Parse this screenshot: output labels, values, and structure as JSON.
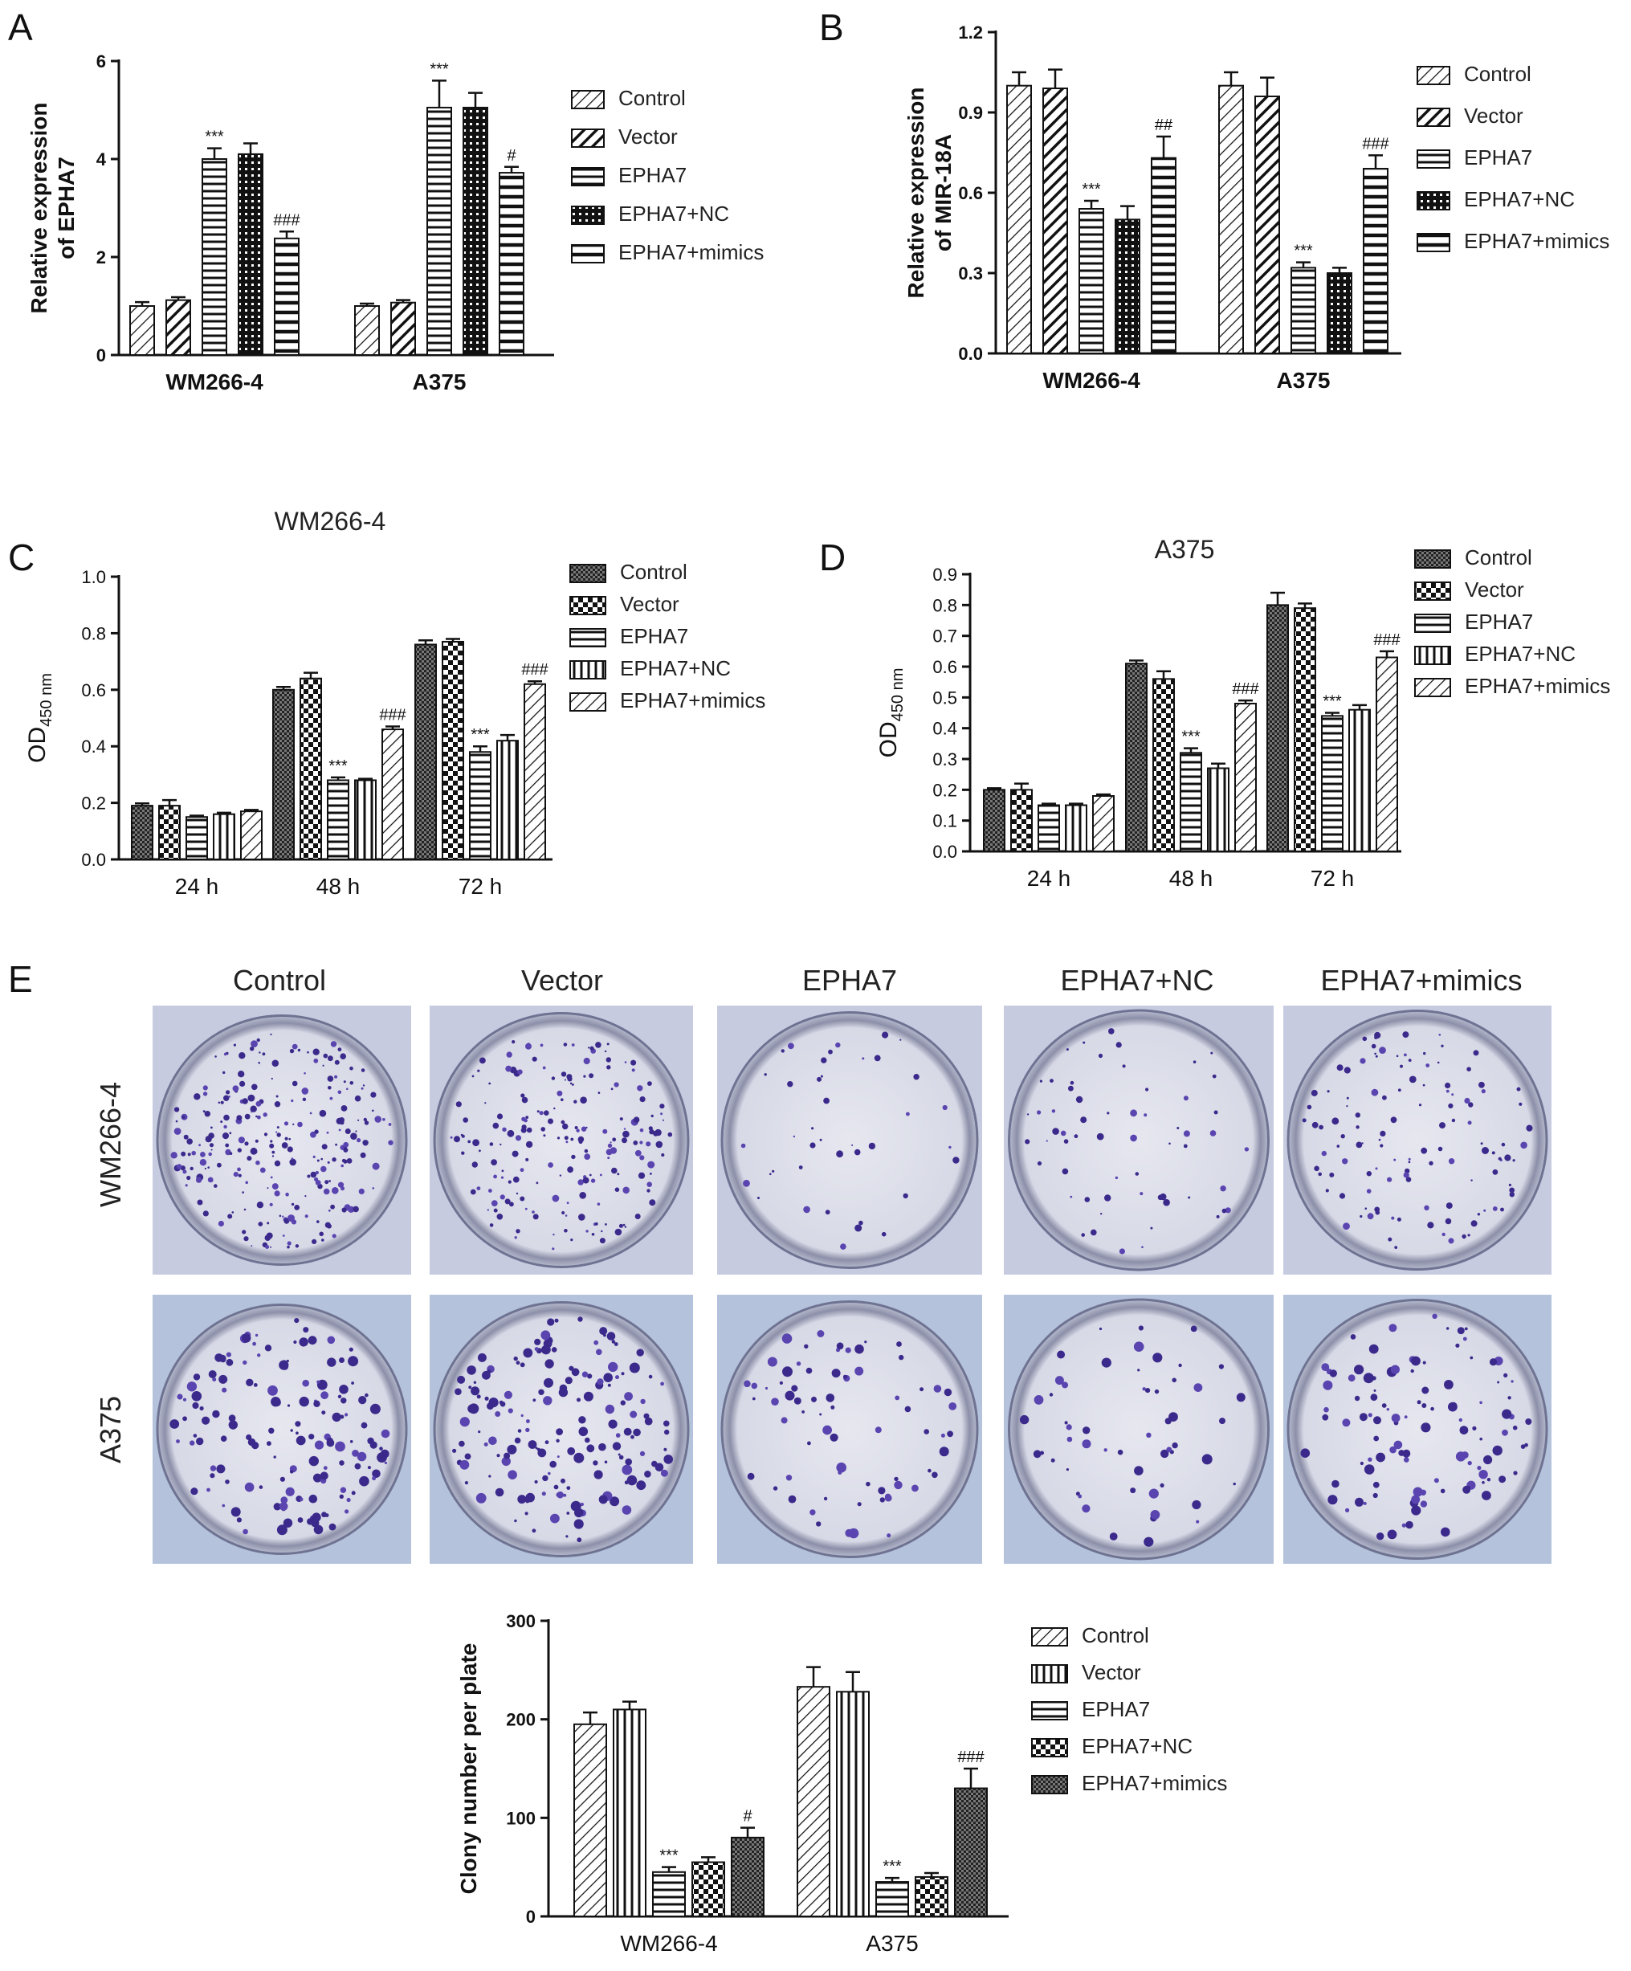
{
  "panels": {
    "A": "A",
    "B": "B",
    "C": "C",
    "D": "D",
    "E": "E"
  },
  "colony_photos": {
    "columns": [
      "Control",
      "Vector",
      "EPHA7",
      "EPHA7+NC",
      "EPHA7+mimics"
    ],
    "rows": [
      "WM266-4",
      "A375"
    ]
  },
  "chart_data": [
    {
      "id": "A",
      "type": "bar",
      "ylabel": "Relative expression of EPHA7",
      "ylabel_lines": [
        "Relative expression",
        "of EPHA7"
      ],
      "categories": [
        "WM266-4",
        "A375"
      ],
      "ylim": [
        0,
        6
      ],
      "yticks": [
        "0",
        "2",
        "4",
        "6"
      ],
      "series": [
        {
          "name": "Control",
          "values": [
            1.0,
            1.0
          ],
          "errors": [
            0.08,
            0.05
          ],
          "pattern": "diag-thin"
        },
        {
          "name": "Vector",
          "values": [
            1.12,
            1.07
          ],
          "errors": [
            0.06,
            0.05
          ],
          "pattern": "diag-thick"
        },
        {
          "name": "EPHA7",
          "values": [
            4.0,
            5.05
          ],
          "errors": [
            0.22,
            0.55
          ],
          "pattern": "hlines"
        },
        {
          "name": "EPHA7+NC",
          "values": [
            4.1,
            5.05
          ],
          "errors": [
            0.22,
            0.3
          ],
          "pattern": "dots"
        },
        {
          "name": "EPHA7+mimics",
          "values": [
            2.38,
            3.72
          ],
          "errors": [
            0.14,
            0.12
          ],
          "pattern": "hlines-wide"
        }
      ],
      "annotations": [
        [
          "",
          "",
          "***",
          "",
          "###"
        ],
        [
          "",
          "",
          "***",
          "",
          "#"
        ]
      ]
    },
    {
      "id": "B",
      "type": "bar",
      "ylabel": "Relative expression of MIR-18A",
      "ylabel_lines": [
        "Relative expression",
        "of MIR-18A"
      ],
      "categories": [
        "WM266-4",
        "A375"
      ],
      "ylim": [
        0,
        1.2
      ],
      "yticks": [
        "0.0",
        "0.3",
        "0.6",
        "0.9",
        "1.2"
      ],
      "series": [
        {
          "name": "Control",
          "values": [
            1.0,
            1.0
          ],
          "errors": [
            0.05,
            0.05
          ],
          "pattern": "diag-thin"
        },
        {
          "name": "Vector",
          "values": [
            0.99,
            0.96
          ],
          "errors": [
            0.07,
            0.07
          ],
          "pattern": "diag-thick"
        },
        {
          "name": "EPHA7",
          "values": [
            0.54,
            0.32
          ],
          "errors": [
            0.03,
            0.02
          ],
          "pattern": "hlines"
        },
        {
          "name": "EPHA7+NC",
          "values": [
            0.5,
            0.3
          ],
          "errors": [
            0.05,
            0.02
          ],
          "pattern": "dots"
        },
        {
          "name": "EPHA7+mimics",
          "values": [
            0.73,
            0.69
          ],
          "errors": [
            0.08,
            0.05
          ],
          "pattern": "hlines-wide"
        }
      ],
      "annotations": [
        [
          "",
          "",
          "***",
          "",
          "##"
        ],
        [
          "",
          "",
          "***",
          "",
          "###"
        ]
      ]
    },
    {
      "id": "C",
      "type": "bar",
      "title": "WM266-4",
      "ylabel": "OD450 nm",
      "ylabel_main": "OD",
      "ylabel_sub": "450 nm",
      "categories": [
        "24 h",
        "48 h",
        "72 h"
      ],
      "ylim": [
        0,
        1.0
      ],
      "yticks": [
        "0.0",
        "0.2",
        "0.4",
        "0.6",
        "0.8",
        "1.0"
      ],
      "series": [
        {
          "name": "Control",
          "values": [
            0.19,
            0.6,
            0.76
          ],
          "errors": [
            0.008,
            0.01,
            0.015
          ],
          "pattern": "checker-dense"
        },
        {
          "name": "Vector",
          "values": [
            0.19,
            0.64,
            0.77
          ],
          "errors": [
            0.02,
            0.02,
            0.01
          ],
          "pattern": "checker"
        },
        {
          "name": "EPHA7",
          "values": [
            0.15,
            0.28,
            0.38
          ],
          "errors": [
            0.005,
            0.01,
            0.02
          ],
          "pattern": "hlines"
        },
        {
          "name": "EPHA7+NC",
          "values": [
            0.16,
            0.28,
            0.42
          ],
          "errors": [
            0.005,
            0.005,
            0.02
          ],
          "pattern": "vlines"
        },
        {
          "name": "EPHA7+mimics",
          "values": [
            0.17,
            0.46,
            0.62
          ],
          "errors": [
            0.005,
            0.01,
            0.01
          ],
          "pattern": "diag-thin"
        }
      ],
      "annotations": [
        [
          "",
          "",
          "",
          "",
          ""
        ],
        [
          "",
          "",
          "***",
          "",
          "###"
        ],
        [
          "",
          "",
          "***",
          "",
          "###"
        ]
      ]
    },
    {
      "id": "D",
      "type": "bar",
      "title": "A375",
      "ylabel": "OD450 nm",
      "ylabel_main": "OD",
      "ylabel_sub": "450 nm",
      "categories": [
        "24 h",
        "48 h",
        "72 h"
      ],
      "ylim": [
        0,
        0.9
      ],
      "yticks": [
        "0.0",
        "0.1",
        "0.2",
        "0.3",
        "0.4",
        "0.5",
        "0.6",
        "0.7",
        "0.8",
        "0.9"
      ],
      "series": [
        {
          "name": "Control",
          "values": [
            0.2,
            0.61,
            0.8
          ],
          "errors": [
            0.005,
            0.01,
            0.04
          ],
          "pattern": "checker-dense"
        },
        {
          "name": "Vector",
          "values": [
            0.2,
            0.56,
            0.79
          ],
          "errors": [
            0.02,
            0.025,
            0.015
          ],
          "pattern": "checker"
        },
        {
          "name": "EPHA7",
          "values": [
            0.15,
            0.32,
            0.44
          ],
          "errors": [
            0.005,
            0.015,
            0.01
          ],
          "pattern": "hlines"
        },
        {
          "name": "EPHA7+NC",
          "values": [
            0.15,
            0.27,
            0.46
          ],
          "errors": [
            0.005,
            0.015,
            0.015
          ],
          "pattern": "vlines"
        },
        {
          "name": "EPHA7+mimics",
          "values": [
            0.18,
            0.48,
            0.63
          ],
          "errors": [
            0.005,
            0.01,
            0.02
          ],
          "pattern": "diag-thin"
        }
      ],
      "annotations": [
        [
          "",
          "",
          "",
          "",
          ""
        ],
        [
          "",
          "",
          "***",
          "",
          "###"
        ],
        [
          "",
          "",
          "***",
          "",
          "###"
        ]
      ]
    },
    {
      "id": "E",
      "type": "bar",
      "ylabel": "Clony number per plate",
      "categories": [
        "WM266-4",
        "A375"
      ],
      "ylim": [
        0,
        300
      ],
      "yticks": [
        "0",
        "100",
        "200",
        "300"
      ],
      "series": [
        {
          "name": "Control",
          "values": [
            195,
            233
          ],
          "errors": [
            12,
            20
          ],
          "pattern": "diag-thin"
        },
        {
          "name": "Vector",
          "values": [
            210,
            228
          ],
          "errors": [
            8,
            20
          ],
          "pattern": "vlines"
        },
        {
          "name": "EPHA7",
          "values": [
            45,
            35
          ],
          "errors": [
            5,
            4
          ],
          "pattern": "hlines"
        },
        {
          "name": "EPHA7+NC",
          "values": [
            55,
            40
          ],
          "errors": [
            5,
            4
          ],
          "pattern": "checker"
        },
        {
          "name": "EPHA7+mimics",
          "values": [
            80,
            130
          ],
          "errors": [
            10,
            20
          ],
          "pattern": "checker-dense"
        }
      ],
      "annotations": [
        [
          "",
          "",
          "***",
          "",
          "#"
        ],
        [
          "",
          "",
          "***",
          "",
          "###"
        ]
      ]
    }
  ]
}
